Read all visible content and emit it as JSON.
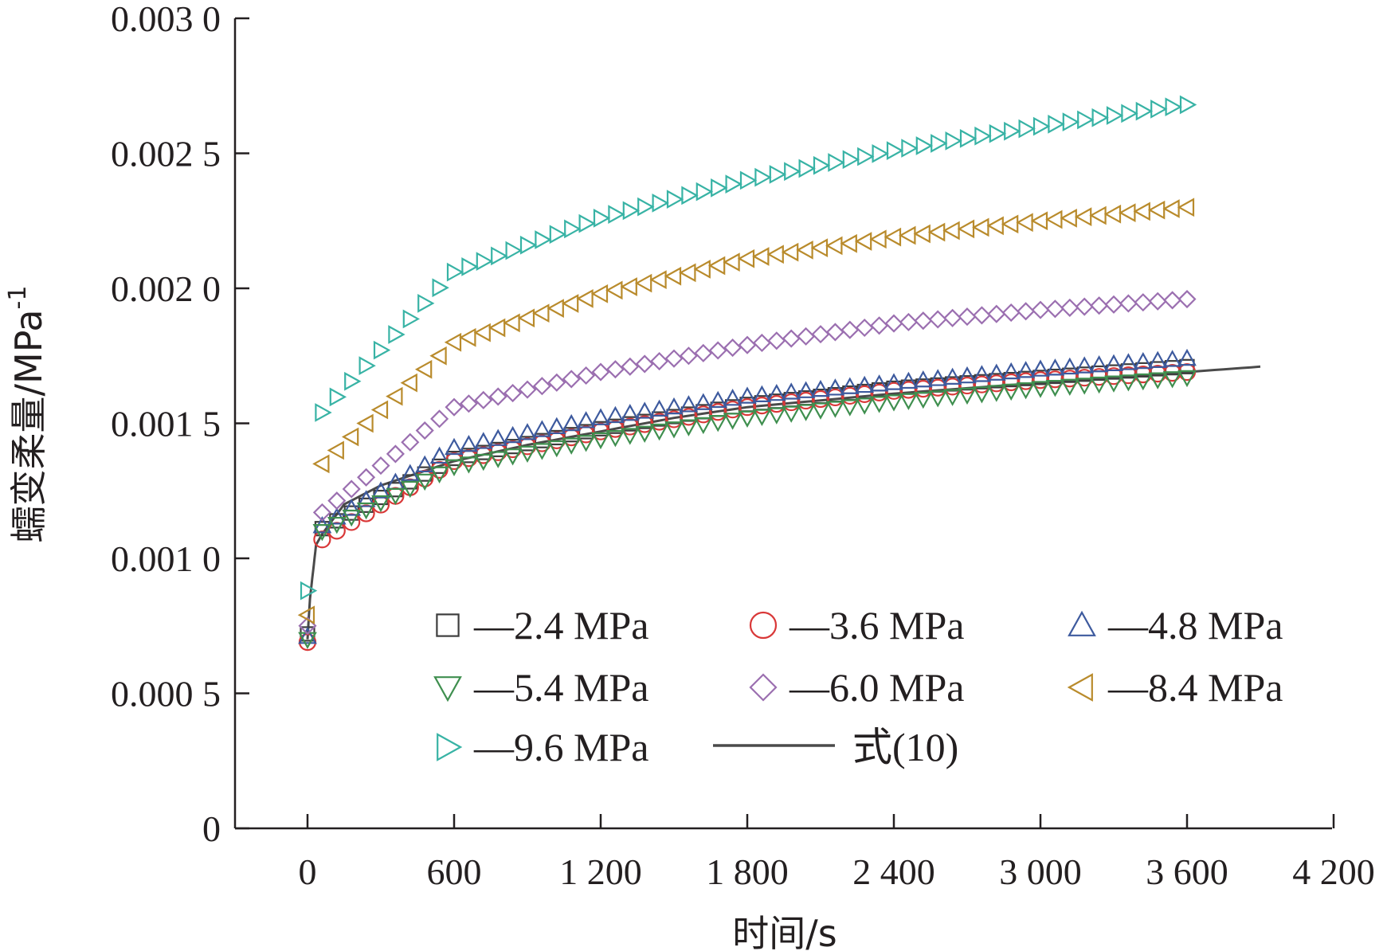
{
  "chart_data": {
    "type": "scatter",
    "xlabel": "时间/s",
    "ylabel": "蠕变柔量/MPa",
    "ylabel_sup": "-1",
    "xlim": [
      -500,
      4200
    ],
    "ylim": [
      0,
      0.003
    ],
    "x_ticks": [
      0,
      600,
      1200,
      1800,
      2400,
      3000,
      3600,
      4200
    ],
    "x_tick_labels": [
      "0",
      "600",
      "1 200",
      "1 800",
      "2 400",
      "3 000",
      "3 600",
      "4 200"
    ],
    "y_ticks": [
      0,
      0.0005,
      0.001,
      0.0015,
      0.002,
      0.0025,
      0.003
    ],
    "y_tick_labels": [
      "0",
      "0.000 5",
      "0.001 0",
      "0.001 5",
      "0.002 0",
      "0.002 5",
      "0.003 0"
    ],
    "grid": false,
    "legend_position": "bottom-right, inside plot",
    "series": [
      {
        "name": "—2.4 MPa",
        "marker": "square",
        "color": "#3d3d3d",
        "initial": 0.00072,
        "points": [
          [
            60,
            0.00111
          ],
          [
            600,
            0.00137
          ],
          [
            1200,
            0.00148
          ],
          [
            1800,
            0.00157
          ],
          [
            2400,
            0.00163
          ],
          [
            3000,
            0.00167
          ],
          [
            3600,
            0.00171
          ]
        ]
      },
      {
        "name": "—3.6 MPa",
        "marker": "circle",
        "color": "#d93838",
        "initial": 0.00069,
        "points": [
          [
            60,
            0.00107
          ],
          [
            600,
            0.00136
          ],
          [
            1200,
            0.00147
          ],
          [
            1800,
            0.00156
          ],
          [
            2400,
            0.00162
          ],
          [
            3000,
            0.00166
          ],
          [
            3600,
            0.00169
          ]
        ]
      },
      {
        "name": "—4.8 MPa",
        "marker": "triangle-up",
        "color": "#3d5a9e",
        "initial": 0.00071,
        "points": [
          [
            60,
            0.00112
          ],
          [
            600,
            0.00141
          ],
          [
            1200,
            0.00152
          ],
          [
            1800,
            0.0016
          ],
          [
            2400,
            0.00165
          ],
          [
            3000,
            0.0017
          ],
          [
            3600,
            0.00174
          ]
        ]
      },
      {
        "name": "—5.4 MPa",
        "marker": "triangle-down",
        "color": "#3f8f4f",
        "initial": 0.0007,
        "points": [
          [
            60,
            0.0011
          ],
          [
            600,
            0.00134
          ],
          [
            1200,
            0.00144
          ],
          [
            1800,
            0.00152
          ],
          [
            2400,
            0.00158
          ],
          [
            3000,
            0.00163
          ],
          [
            3600,
            0.00167
          ]
        ]
      },
      {
        "name": "—6.0 MPa",
        "marker": "diamond",
        "color": "#9b6fb0",
        "initial": 0.00075,
        "points": [
          [
            60,
            0.00117
          ],
          [
            600,
            0.00156
          ],
          [
            1200,
            0.00169
          ],
          [
            1800,
            0.00179
          ],
          [
            2400,
            0.00187
          ],
          [
            3000,
            0.00192
          ],
          [
            3600,
            0.00196
          ]
        ]
      },
      {
        "name": "—8.4 MPa",
        "marker": "triangle-left",
        "color": "#b98b2c",
        "initial": 0.00079,
        "points": [
          [
            60,
            0.00135
          ],
          [
            600,
            0.0018
          ],
          [
            1200,
            0.00198
          ],
          [
            1800,
            0.00211
          ],
          [
            2400,
            0.00219
          ],
          [
            3000,
            0.00225
          ],
          [
            3600,
            0.0023
          ]
        ]
      },
      {
        "name": "—9.6 MPa",
        "marker": "triangle-right",
        "color": "#38b3a5",
        "initial": 0.00088,
        "points": [
          [
            60,
            0.00154
          ],
          [
            600,
            0.00206
          ],
          [
            1200,
            0.00226
          ],
          [
            1800,
            0.0024
          ],
          [
            2400,
            0.00251
          ],
          [
            3000,
            0.0026
          ],
          [
            3600,
            0.00268
          ]
        ]
      }
    ],
    "fit_line": {
      "name": "式(10)",
      "color": "#4a4a4a",
      "points": [
        [
          0,
          0.0007
        ],
        [
          10,
          0.00085
        ],
        [
          35,
          0.00105
        ],
        [
          60,
          0.00109
        ],
        [
          150,
          0.0012
        ],
        [
          300,
          0.00127
        ],
        [
          600,
          0.00136
        ],
        [
          900,
          0.00142
        ],
        [
          1200,
          0.00147
        ],
        [
          1500,
          0.00152
        ],
        [
          1800,
          0.00156
        ],
        [
          2400,
          0.00161
        ],
        [
          3000,
          0.00165
        ],
        [
          3600,
          0.00169
        ],
        [
          3900,
          0.00171
        ]
      ]
    }
  }
}
